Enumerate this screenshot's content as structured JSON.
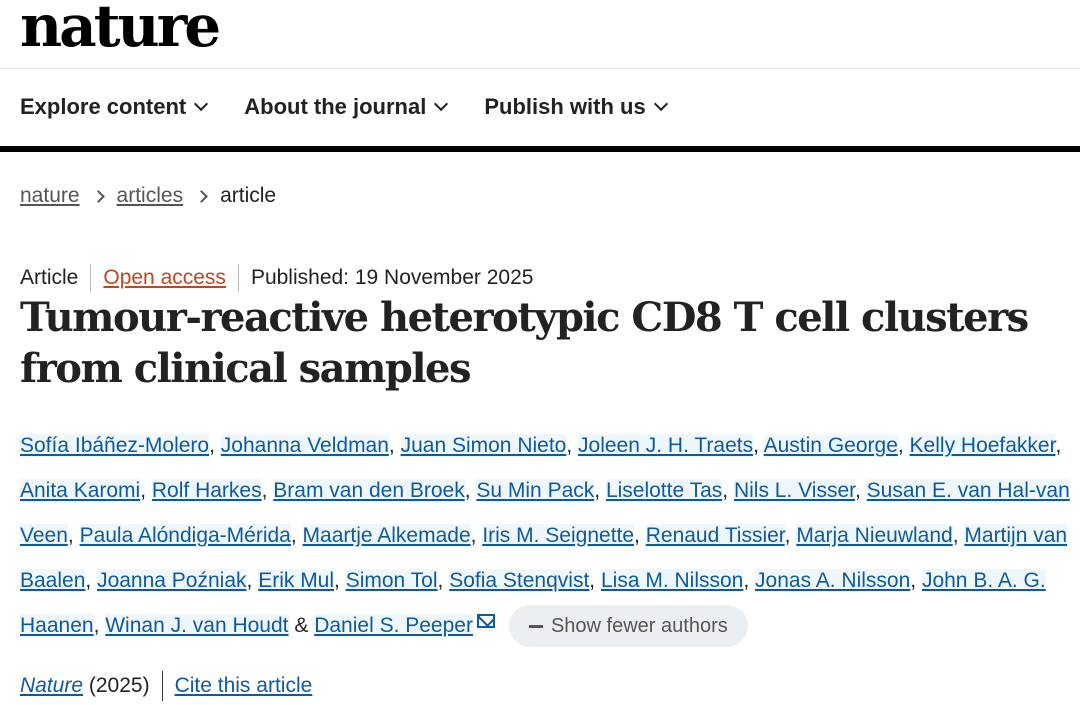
{
  "header": {
    "logo": "nature",
    "nav": [
      "Explore content",
      "About the journal",
      "Publish with us"
    ]
  },
  "breadcrumb": [
    "nature",
    "articles",
    "article"
  ],
  "meta": {
    "type": "Article",
    "access": "Open access",
    "published": "Published: 19 November 2025"
  },
  "title": "Tumour-reactive heterotypic CD8 T cell clusters from clinical samples",
  "authors": [
    "Sofía Ibáñez-Molero",
    "Johanna Veldman",
    "Juan Simon Nieto",
    "Joleen J. H. Traets",
    "Austin George",
    "Kelly Hoefakker",
    "Anita Karomi",
    "Rolf Harkes",
    "Bram van den Broek",
    "Su Min Pack",
    "Liselotte Tas",
    "Nils L. Visser",
    "Susan E. van Hal-van Veen",
    "Paula Alóndiga-Mérida",
    "Maartje Alkemade",
    "Iris M. Seignette",
    "Renaud Tissier",
    "Marja Nieuwland",
    "Martijn van Baalen",
    "Joanna Poźniak",
    "Erik Mul",
    "Simon Tol",
    "Sofia Stenqvist",
    "Lisa M. Nilsson",
    "Jonas A. Nilsson",
    "John B. A. G. Haanen",
    "Winan J. van Houdt",
    "Daniel S. Peeper"
  ],
  "authors_conjunction": "&",
  "show_fewer": "Show fewer authors",
  "citation": {
    "journal": "Nature",
    "year": "(2025)",
    "cite": "Cite this article"
  },
  "colors": {
    "link": "#0f5a9e",
    "open_access": "#c2451e"
  }
}
